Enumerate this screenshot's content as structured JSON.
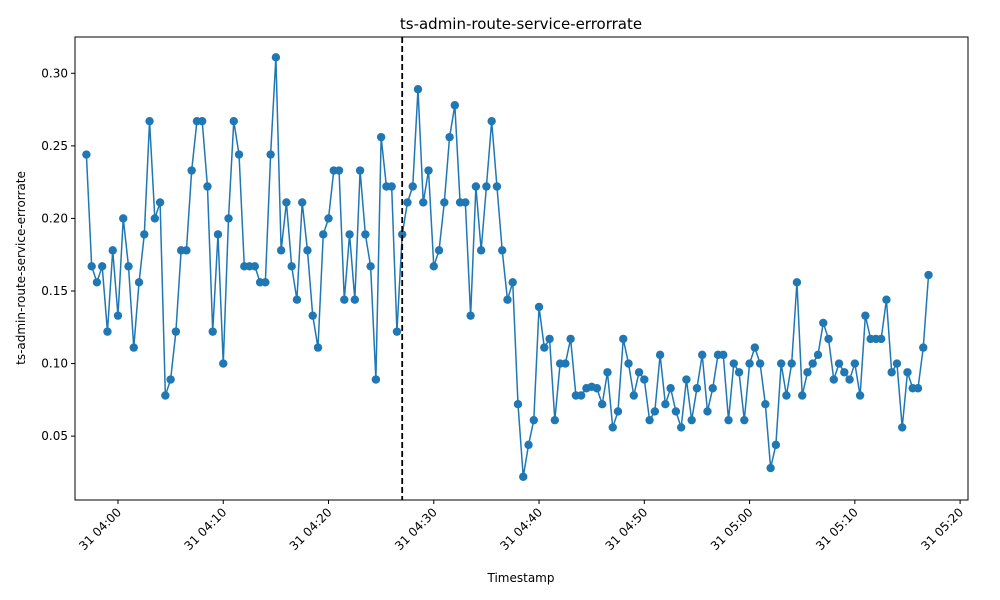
{
  "chart_data": {
    "type": "line",
    "title": "ts-admin-route-service-errorrate",
    "xlabel": "Timestamp",
    "ylabel": "ts-admin-route-service-errorrate",
    "x_start": "31 03:57",
    "x_step_seconds": 30,
    "x_ticks": [
      "31 04:00",
      "31 04:10",
      "31 04:20",
      "31 04:30",
      "31 04:40",
      "31 04:50",
      "31 05:00",
      "31 05:10",
      "31 05:20"
    ],
    "y_ticks": [
      "0.05",
      "0.10",
      "0.15",
      "0.20",
      "0.25",
      "0.30"
    ],
    "ylim": [
      0.006,
      0.325
    ],
    "xlim": [
      "31 03:55:55",
      "31 05:20:45"
    ],
    "grid": false,
    "legend": "none",
    "line_color": "#1f77b4",
    "marker": "circle",
    "vline": {
      "x": "31 04:27:00",
      "style": "dashed",
      "color": "#000000"
    },
    "series": [
      {
        "values": [
          0.244,
          0.167,
          0.156,
          0.167,
          0.122,
          0.178,
          0.133,
          0.2,
          0.167,
          0.111,
          0.156,
          0.189,
          0.267,
          0.2,
          0.211,
          0.078,
          0.089,
          0.122,
          0.178,
          0.178,
          0.233,
          0.267,
          0.267,
          0.222,
          0.122,
          0.189,
          0.1,
          0.2,
          0.267,
          0.244,
          0.167,
          0.167,
          0.167,
          0.156,
          0.156,
          0.244,
          0.311,
          0.178,
          0.211,
          0.167,
          0.144,
          0.211,
          0.178,
          0.133,
          0.111,
          0.189,
          0.2,
          0.233,
          0.233,
          0.144,
          0.189,
          0.144,
          0.233,
          0.189,
          0.167,
          0.089,
          0.256,
          0.222,
          0.222,
          0.122,
          0.189,
          0.211,
          0.222,
          0.289,
          0.211,
          0.233,
          0.167,
          0.178,
          0.211,
          0.256,
          0.278,
          0.211,
          0.211,
          0.133,
          0.222,
          0.178,
          0.222,
          0.267,
          0.222,
          0.178,
          0.144,
          0.156,
          0.072,
          0.022,
          0.044,
          0.061,
          0.139,
          0.111,
          0.117,
          0.061,
          0.1,
          0.1,
          0.117,
          0.078,
          0.078,
          0.083,
          0.084,
          0.083,
          0.072,
          0.094,
          0.056,
          0.067,
          0.117,
          0.1,
          0.078,
          0.094,
          0.089,
          0.061,
          0.067,
          0.106,
          0.072,
          0.083,
          0.067,
          0.056,
          0.089,
          0.061,
          0.083,
          0.106,
          0.067,
          0.083,
          0.106,
          0.106,
          0.061,
          0.1,
          0.094,
          0.061,
          0.1,
          0.111,
          0.1,
          0.072,
          0.028,
          0.044,
          0.1,
          0.078,
          0.1,
          0.156,
          0.078,
          0.094,
          0.1,
          0.106,
          0.128,
          0.117,
          0.089,
          0.1,
          0.094,
          0.089,
          0.1,
          0.078,
          0.133,
          0.117,
          0.117,
          0.117,
          0.144,
          0.094,
          0.1,
          0.056,
          0.094,
          0.083,
          0.083,
          0.111,
          0.161
        ]
      }
    ]
  }
}
